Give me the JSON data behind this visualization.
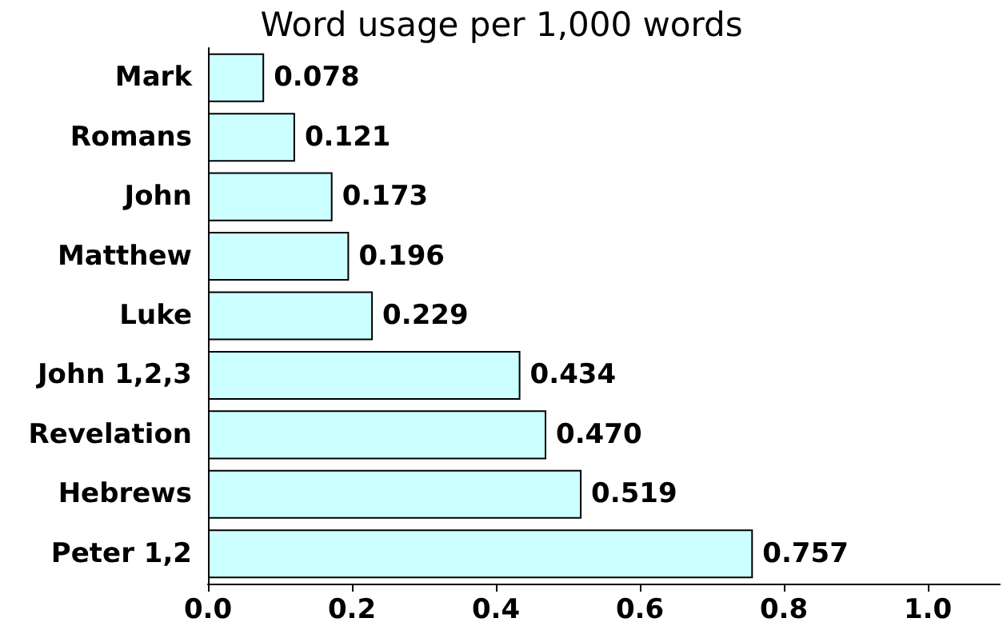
{
  "chart_data": {
    "type": "bar",
    "orientation": "horizontal",
    "title": "Word usage per 1,000 words",
    "categories": [
      "Mark",
      "Romans",
      "John",
      "Matthew",
      "Luke",
      "John 1,2,3",
      "Revelation",
      "Hebrews",
      "Peter 1,2"
    ],
    "values": [
      0.078,
      0.121,
      0.173,
      0.196,
      0.229,
      0.434,
      0.47,
      0.519,
      0.757
    ],
    "value_labels": [
      "0.078",
      "0.121",
      "0.173",
      "0.196",
      "0.229",
      "0.434",
      "0.470",
      "0.519",
      "0.757"
    ],
    "color": "#ccffff",
    "xlim": [
      0,
      1.1
    ],
    "xticks": [
      {
        "value": 0,
        "label": "0.0"
      },
      {
        "value": 0.2,
        "label": "0.2"
      },
      {
        "value": 0.4,
        "label": "0.4"
      },
      {
        "value": 0.6,
        "label": "0.6"
      },
      {
        "value": 0.8,
        "label": "0.8"
      },
      {
        "value": 1,
        "label": "1.0"
      }
    ],
    "grid": false
  }
}
